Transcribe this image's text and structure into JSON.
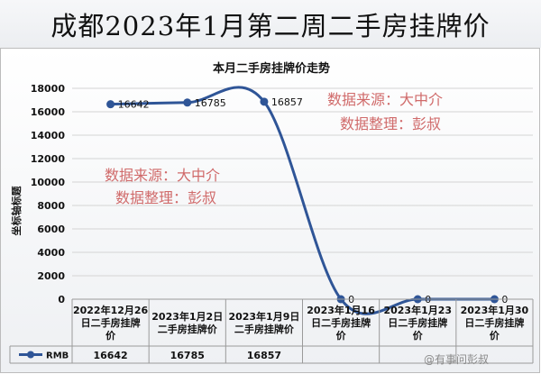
{
  "banner": {
    "title": "成都2023年1月第二周二手房挂牌价"
  },
  "chart_data": {
    "type": "line",
    "title": "本月二手房挂牌价走势",
    "xlabel": "",
    "ylabel": "坐标轴标题",
    "ylim": [
      0,
      18000
    ],
    "y_ticks": [
      "0",
      "2000",
      "4000",
      "6000",
      "8000",
      "10000",
      "12000",
      "14000",
      "16000",
      "18000"
    ],
    "categories": [
      "2022年12月26日二手房挂牌价",
      "2023年1月2日二手房挂牌价",
      "2023年1月9日二手房挂牌价",
      "2023年1月16日二手房挂牌价",
      "2023年1月23日二手房挂牌价",
      "2023年1月30日二手房挂牌价"
    ],
    "category_lines": [
      [
        "2022年12月26",
        "日二手房挂牌",
        "价"
      ],
      [
        "2023年1月2日",
        "二手房挂牌价"
      ],
      [
        "2023年1月9日",
        "二手房挂牌价"
      ],
      [
        "2023年1月16",
        "日二手房挂牌",
        "价"
      ],
      [
        "2023年1月23",
        "日二手房挂牌",
        "价"
      ],
      [
        "2023年1月30",
        "日二手房挂牌",
        "价"
      ]
    ],
    "series": [
      {
        "name": "RMB",
        "values": [
          16642,
          16785,
          16857,
          0,
          0,
          0
        ],
        "data_labels": [
          "16642",
          "16785",
          "16857",
          "0",
          "0",
          "0"
        ],
        "table_values": [
          "16642",
          "16785",
          "16857",
          "",
          "",
          ""
        ],
        "color": "#2f5597"
      }
    ],
    "data_table": true,
    "grid": true
  },
  "watermarks": {
    "top": {
      "line1": "数据来源：大中介",
      "line2": "数据整理：彭叔"
    },
    "middle": {
      "line1": "数据来源：大中介",
      "line2": "数据整理：彭叔"
    },
    "corner": "@有事问彭叔"
  }
}
